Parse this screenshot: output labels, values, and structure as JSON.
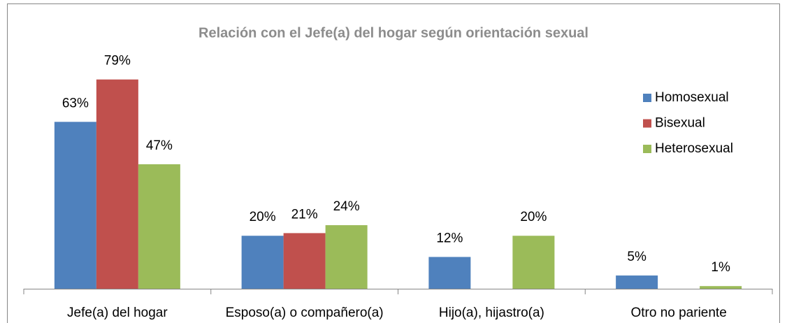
{
  "chart_data": {
    "type": "bar",
    "title": "Relación con el Jefe(a) del hogar según orientación sexual",
    "categories": [
      "Jefe(a) del hogar",
      "Esposo(a) o compañero(a)",
      "Hijo(a), hijastro(a)",
      "Otro no pariente"
    ],
    "series": [
      {
        "name": "Homosexual",
        "color": "#4f81bd",
        "values": [
          63,
          20,
          12,
          5
        ],
        "value_labels": [
          "63%",
          "20%",
          "12%",
          "5%"
        ]
      },
      {
        "name": "Bisexual",
        "color": "#c0504d",
        "values": [
          79,
          21,
          null,
          null
        ],
        "value_labels": [
          "79%",
          "21%",
          null,
          null
        ]
      },
      {
        "name": "Heterosexual",
        "color": "#9bbb59",
        "values": [
          47,
          24,
          20,
          1
        ],
        "value_labels": [
          "47%",
          "24%",
          "20%",
          "1%"
        ]
      }
    ],
    "ylim": [
      0,
      90
    ],
    "legend": "right"
  }
}
